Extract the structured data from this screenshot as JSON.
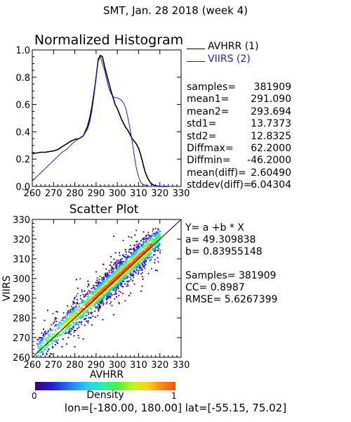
{
  "header": {
    "title": "SMT,  Jan. 28 2018 (week 4)"
  },
  "chart_data": [
    {
      "type": "line",
      "title": "Normalized Histogram",
      "xlabel": "",
      "ylabel": "",
      "xlim": [
        260,
        330
      ],
      "ylim": [
        0,
        1.0
      ],
      "xticks": [
        260,
        270,
        280,
        290,
        300,
        310,
        320,
        330
      ],
      "yticks": [
        0.0,
        0.2,
        0.4,
        0.6,
        0.8,
        1.0
      ],
      "xtick_labels": [
        "260",
        "270",
        "280",
        "290",
        "300",
        "310",
        "320",
        "330"
      ],
      "ytick_labels": [
        "0.0",
        "0.2",
        "0.4",
        "0.6",
        "0.8",
        "1.0"
      ],
      "series": [
        {
          "name": "AVHRR (1)",
          "color": "#000000",
          "x": [
            260,
            262,
            264,
            266,
            268,
            270,
            272,
            274,
            276,
            278,
            280,
            282,
            284,
            286,
            287,
            288,
            289,
            290,
            291,
            292,
            293,
            294,
            295,
            296,
            297,
            298,
            299,
            300,
            301,
            302,
            303,
            304,
            305,
            306,
            307,
            308,
            309,
            310,
            311,
            312,
            313,
            314,
            315,
            316,
            317,
            318,
            320,
            322,
            324
          ],
          "values": [
            0.24,
            0.245,
            0.25,
            0.25,
            0.255,
            0.26,
            0.27,
            0.29,
            0.31,
            0.33,
            0.345,
            0.35,
            0.37,
            0.44,
            0.5,
            0.58,
            0.68,
            0.8,
            0.93,
            0.96,
            0.95,
            0.88,
            0.82,
            0.76,
            0.7,
            0.65,
            0.6,
            0.57,
            0.53,
            0.49,
            0.46,
            0.43,
            0.41,
            0.38,
            0.35,
            0.33,
            0.31,
            0.28,
            0.23,
            0.17,
            0.11,
            0.07,
            0.04,
            0.02,
            0.01,
            0.005,
            0.0,
            0.0,
            0.0
          ]
        },
        {
          "name": "VIIRS (2)",
          "color": "#2020c0",
          "x": [
            260,
            262,
            264,
            266,
            268,
            270,
            272,
            274,
            276,
            278,
            280,
            282,
            284,
            286,
            287,
            288,
            289,
            290,
            291,
            292,
            293,
            294,
            295,
            296,
            297,
            298,
            299,
            300,
            301,
            302,
            303,
            304,
            305,
            306,
            307,
            308,
            309,
            310,
            311,
            312,
            313,
            314,
            315,
            316,
            317,
            318,
            320,
            322,
            324
          ],
          "values": [
            0.04,
            0.07,
            0.1,
            0.13,
            0.16,
            0.19,
            0.22,
            0.25,
            0.27,
            0.3,
            0.33,
            0.35,
            0.37,
            0.42,
            0.47,
            0.55,
            0.66,
            0.8,
            0.92,
            0.95,
            0.9,
            0.85,
            0.78,
            0.72,
            0.68,
            0.66,
            0.65,
            0.65,
            0.64,
            0.63,
            0.61,
            0.57,
            0.5,
            0.42,
            0.33,
            0.22,
            0.13,
            0.07,
            0.03,
            0.015,
            0.01,
            0.005,
            0.0,
            0.0,
            0.0,
            0.0,
            0.0,
            0.0,
            0.0
          ]
        }
      ]
    },
    {
      "type": "heatmap",
      "title": "Scatter Plot",
      "xlabel": "AVHRR",
      "ylabel": "VIIRS",
      "xlim": [
        260,
        330
      ],
      "ylim": [
        260,
        330
      ],
      "xticks": [
        260,
        270,
        280,
        290,
        300,
        310,
        320,
        330
      ],
      "yticks": [
        260,
        270,
        280,
        290,
        300,
        310,
        320,
        330
      ],
      "xtick_labels": [
        "260",
        "270",
        "280",
        "290",
        "300",
        "310",
        "320",
        "330"
      ],
      "ytick_labels": [
        "260",
        "270",
        "280",
        "290",
        "300",
        "310",
        "320",
        "330"
      ],
      "one_to_one_line": true,
      "fit": {
        "a": 49.309838,
        "b": 0.83955148
      },
      "colorbar": {
        "label": "Density",
        "min_label": "0",
        "max_label": "1"
      }
    }
  ],
  "stats": {
    "rows": [
      {
        "label": "samples=",
        "value": "381909"
      },
      {
        "label": "mean1=",
        "value": "291.090"
      },
      {
        "label": "mean2=",
        "value": "293.694"
      },
      {
        "label": "std1=",
        "value": "13.7373"
      },
      {
        "label": "std2=",
        "value": "12.8325"
      },
      {
        "label": "Diffmax=",
        "value": "62.2000"
      },
      {
        "label": "Diffmin=",
        "value": "-46.2000"
      },
      {
        "label": "mean(diff)=",
        "value": "2.60490"
      },
      {
        "label": "stddev(diff)=",
        "value": "6.04304"
      }
    ]
  },
  "fit_text": {
    "equation": "Y= a +b * X",
    "a_line": "a= 49.309838",
    "b_line": "b= 0.83955148",
    "samples_line": "Samples= 381909",
    "cc_line": "CC=  0.8987",
    "rmse_line": "RMSE= 5.6267399"
  },
  "footer": {
    "region": "lon=[-180.00, 180.00] lat=[-55.15, 75.02]"
  }
}
